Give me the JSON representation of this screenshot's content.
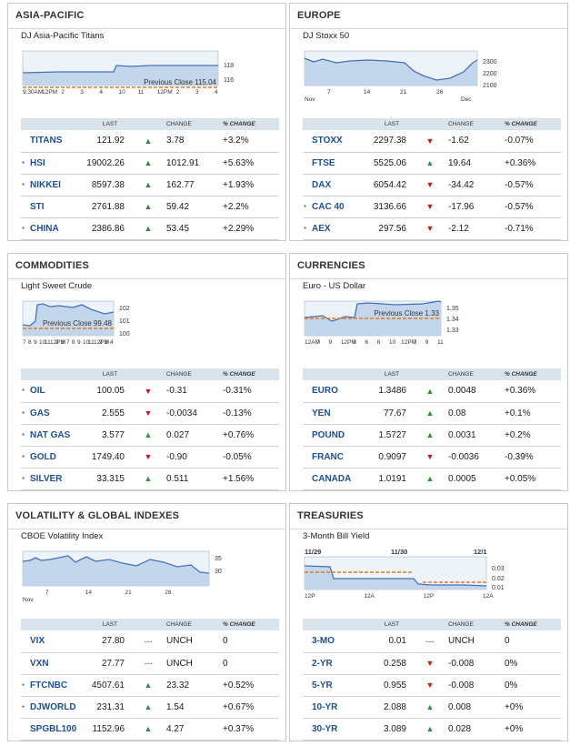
{
  "columns": {
    "last": "LAST",
    "change": "CHANGE",
    "pct_change": "% CHANGE"
  },
  "colors": {
    "up": "#2e8f3a",
    "down": "#c21b1b",
    "line": "#4472b8",
    "fill": "#bcd0ea",
    "prev_close": "#e07b24",
    "accent_link": "#1f4f8f"
  },
  "panels": [
    {
      "title": "ASIA-PACIFIC",
      "chart_title": "DJ Asia-Pacific Titans",
      "y_ticks": [
        "118",
        "116"
      ],
      "x_ticks": [
        "9:30AM",
        "12PM",
        "2",
        "3",
        "4",
        "10",
        "11",
        "12PM",
        "2",
        "3",
        "4"
      ],
      "prev_close": "Previous Close 115.04",
      "rows": [
        {
          "star": "",
          "symbol": "TITANS",
          "last": "121.92",
          "dir": "up",
          "change": "3.78",
          "pct": "+3.2%"
        },
        {
          "star": "*",
          "symbol": "HSI",
          "last": "19002.26",
          "dir": "up",
          "change": "1012.91",
          "pct": "+5.63%"
        },
        {
          "star": "*",
          "symbol": "NIKKEI",
          "last": "8597.38",
          "dir": "up",
          "change": "162.77",
          "pct": "+1.93%"
        },
        {
          "star": "",
          "symbol": "STI",
          "last": "2761.88",
          "dir": "up",
          "change": "59.42",
          "pct": "+2.2%"
        },
        {
          "star": "*",
          "symbol": "CHINA",
          "last": "2386.86",
          "dir": "up",
          "change": "53.45",
          "pct": "+2.29%"
        }
      ]
    },
    {
      "title": "EUROPE",
      "chart_title": "DJ Stoxx 50",
      "y_ticks": [
        "2300",
        "2200",
        "2100"
      ],
      "x_ticks": [
        "7",
        "14",
        "21",
        "28"
      ],
      "x_sub": [
        "Nov",
        "Dec"
      ],
      "prev_close": "",
      "rows": [
        {
          "star": "",
          "symbol": "STOXX",
          "last": "2297.38",
          "dir": "down",
          "change": "-1.62",
          "pct": "-0.07%"
        },
        {
          "star": "",
          "symbol": "FTSE",
          "last": "5525.06",
          "dir": "up",
          "change": "19.64",
          "pct": "+0.36%"
        },
        {
          "star": "",
          "symbol": "DAX",
          "last": "6054.42",
          "dir": "down",
          "change": "-34.42",
          "pct": "-0.57%"
        },
        {
          "star": "*",
          "symbol": "CAC 40",
          "last": "3136.66",
          "dir": "down",
          "change": "-17.96",
          "pct": "-0.57%"
        },
        {
          "star": "*",
          "symbol": "AEX",
          "last": "297.56",
          "dir": "down",
          "change": "-2.12",
          "pct": "-0.71%"
        }
      ]
    },
    {
      "title": "COMMODITIES",
      "chart_title": "Light Sweet Crude",
      "y_ticks": [
        "102",
        "101",
        "100"
      ],
      "x_ticks": [
        "7",
        "8",
        "9",
        "10",
        "11",
        "12PM",
        "2",
        "3",
        "7",
        "8",
        "9",
        "10",
        "11",
        "12PM",
        "2",
        "3",
        "4"
      ],
      "prev_close": "Previous Close 99.48",
      "rows": [
        {
          "star": "*",
          "symbol": "OIL",
          "last": "100.05",
          "dir": "down",
          "change": "-0.31",
          "pct": "-0.31%"
        },
        {
          "star": "*",
          "symbol": "GAS",
          "last": "2.555",
          "dir": "down",
          "change": "-0.0034",
          "pct": "-0.13%"
        },
        {
          "star": "*",
          "symbol": "NAT GAS",
          "last": "3.577",
          "dir": "up",
          "change": "0.027",
          "pct": "+0.76%"
        },
        {
          "star": "*",
          "symbol": "GOLD",
          "last": "1749.40",
          "dir": "down",
          "change": "-0.90",
          "pct": "-0.05%"
        },
        {
          "star": "*",
          "symbol": "SILVER",
          "last": "33.315",
          "dir": "up",
          "change": "0.511",
          "pct": "+1.56%"
        }
      ]
    },
    {
      "title": "CURRENCIES",
      "chart_title": "Euro - US Dollar",
      "y_ticks": [
        "1.35",
        "1.34",
        "1.33"
      ],
      "x_ticks": [
        "12AM",
        "7",
        "9",
        "12PM",
        "3",
        "6",
        "8",
        "10",
        "12PM",
        "7",
        "9",
        "11"
      ],
      "prev_close": "Previous Close 1.33",
      "rows": [
        {
          "star": "",
          "symbol": "EURO",
          "last": "1.3486",
          "dir": "up",
          "change": "0.0048",
          "pct": "+0.36%"
        },
        {
          "star": "",
          "symbol": "YEN",
          "last": "77.67",
          "dir": "up",
          "change": "0.08",
          "pct": "+0.1%"
        },
        {
          "star": "",
          "symbol": "POUND",
          "last": "1.5727",
          "dir": "up",
          "change": "0.0031",
          "pct": "+0.2%"
        },
        {
          "star": "",
          "symbol": "FRANC",
          "last": "0.9097",
          "dir": "down",
          "change": "-0.0036",
          "pct": "-0.39%"
        },
        {
          "star": "",
          "symbol": "CANADA",
          "last": "1.0191",
          "dir": "up",
          "change": "0.0005",
          "pct": "+0.05%"
        }
      ]
    },
    {
      "title": "VOLATILITY & GLOBAL INDEXES",
      "chart_title": "CBOE Volatility Index",
      "y_ticks": [
        "35",
        "30"
      ],
      "x_ticks": [
        "7",
        "14",
        "21",
        "28"
      ],
      "x_sub": [
        "Nov"
      ],
      "prev_close": "",
      "rows": [
        {
          "star": "",
          "symbol": "VIX",
          "last": "27.80",
          "dir": "flat",
          "change": "UNCH",
          "pct": "0"
        },
        {
          "star": "",
          "symbol": "VXN",
          "last": "27.77",
          "dir": "flat",
          "change": "UNCH",
          "pct": "0"
        },
        {
          "star": "*",
          "symbol": "FTCNBC",
          "last": "4507.61",
          "dir": "up",
          "change": "23.32",
          "pct": "+0.52%"
        },
        {
          "star": "*",
          "symbol": "DJWORLD",
          "last": "231.31",
          "dir": "up",
          "change": "1.54",
          "pct": "+0.67%"
        },
        {
          "star": "",
          "symbol": "SPGBL100",
          "last": "1152.96",
          "dir": "up",
          "change": "4.27",
          "pct": "+0.37%"
        }
      ]
    },
    {
      "title": "TREASURIES",
      "chart_title": "3-Month Bill Yield",
      "y_ticks": [
        "0.03",
        "0.02",
        "0.01"
      ],
      "x_ticks": [
        "12P",
        "12A",
        "12P",
        "12A"
      ],
      "dates": [
        "11/29",
        "11/30",
        "12/1"
      ],
      "prev_close": "",
      "rows": [
        {
          "star": "",
          "symbol": "3-MO",
          "last": "0.01",
          "dir": "flat",
          "change": "UNCH",
          "pct": "0"
        },
        {
          "star": "",
          "symbol": "2-YR",
          "last": "0.258",
          "dir": "down",
          "change": "-0.008",
          "pct": "0%"
        },
        {
          "star": "",
          "symbol": "5-YR",
          "last": "0.955",
          "dir": "down",
          "change": "-0.008",
          "pct": "0%"
        },
        {
          "star": "",
          "symbol": "10-YR",
          "last": "2.088",
          "dir": "up",
          "change": "0.008",
          "pct": "+0%"
        },
        {
          "star": "",
          "symbol": "30-YR",
          "last": "3.089",
          "dir": "up",
          "change": "0.028",
          "pct": "+0%"
        }
      ]
    }
  ]
}
